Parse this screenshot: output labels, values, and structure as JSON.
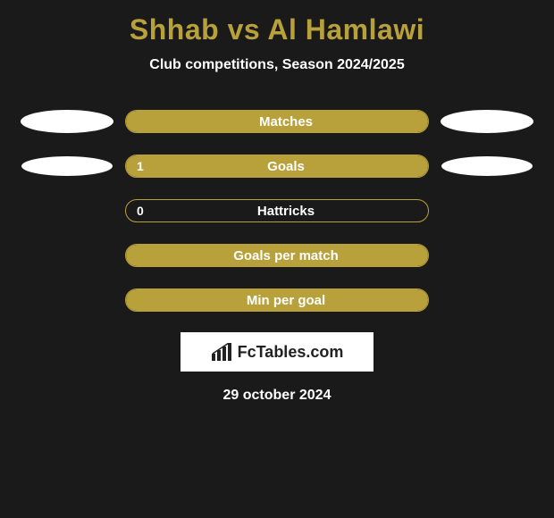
{
  "title": "Shhab vs Al Hamlawi",
  "subtitle": "Club competitions, Season 2024/2025",
  "date": "29 october 2024",
  "logo_text": "FcTables.com",
  "colors": {
    "background": "#1a1a1a",
    "accent": "#b8a03a",
    "text": "#ffffff",
    "ellipse": "#ffffff",
    "logo_bg": "#ffffff",
    "logo_text": "#222222"
  },
  "rows": [
    {
      "label": "Matches",
      "value": "",
      "fill_pct": 100,
      "left_ellipse": {
        "w": 104,
        "h": 26
      },
      "right_ellipse": {
        "w": 104,
        "h": 26
      }
    },
    {
      "label": "Goals",
      "value": "1",
      "fill_pct": 100,
      "left_ellipse": {
        "w": 102,
        "h": 22
      },
      "right_ellipse": {
        "w": 102,
        "h": 22
      }
    },
    {
      "label": "Hattricks",
      "value": "0",
      "fill_pct": 0,
      "left_ellipse": null,
      "right_ellipse": null
    },
    {
      "label": "Goals per match",
      "value": "",
      "fill_pct": 100,
      "left_ellipse": null,
      "right_ellipse": null
    },
    {
      "label": "Min per goal",
      "value": "",
      "fill_pct": 100,
      "left_ellipse": null,
      "right_ellipse": null
    }
  ]
}
